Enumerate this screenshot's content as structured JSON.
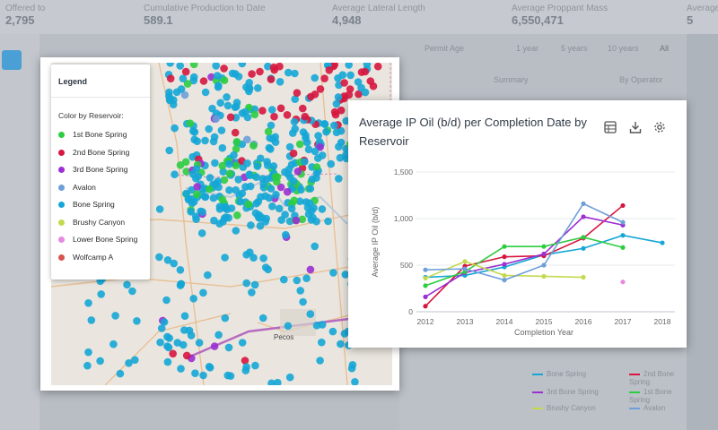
{
  "background": {
    "stats": [
      {
        "label": "Offered to",
        "value": "2,795"
      },
      {
        "label": "Cumulative Production to Date",
        "value": "589.1"
      },
      {
        "label": "Average Lateral Length",
        "value": "4,948"
      },
      {
        "label": "Average Proppant Mass",
        "value": "6,550,471"
      },
      {
        "label": "Average",
        "value": "5"
      }
    ],
    "tabs": [
      "Summary",
      "By Operator"
    ],
    "filters": [
      "Permit Age",
      "1 year",
      "5 years",
      "10 years",
      "All"
    ],
    "bottom_legend": [
      "Bone Spring",
      "2nd Bone Spring",
      "3rd Bone Spring",
      "1st Bone Spring",
      "Brushy Canyon",
      "Avalon"
    ]
  },
  "legend": {
    "title": "Legend",
    "subtitle": "Color by Reservoir:",
    "items": [
      {
        "label": "1st Bone Spring",
        "color": "#2ecc40"
      },
      {
        "label": "2nd Bone Spring",
        "color": "#d7163f"
      },
      {
        "label": "3rd Bone Spring",
        "color": "#9b2fd1"
      },
      {
        "label": "Avalon",
        "color": "#6e9fd9"
      },
      {
        "label": "Bone Spring",
        "color": "#15a6d6"
      },
      {
        "label": "Brushy Canyon",
        "color": "#c5d94e"
      },
      {
        "label": "Lower Bone Spring",
        "color": "#e68ae0"
      },
      {
        "label": "Wolfcamp A",
        "color": "#d9534f"
      }
    ]
  },
  "map": {
    "town_label": "Pecos"
  },
  "chart": {
    "title": "Average IP Oil (b/d) per Completion Date by Reservoir",
    "tool_icons": [
      "table-icon",
      "download-icon",
      "gear-icon"
    ]
  },
  "chart_data": {
    "type": "line",
    "title": "Average IP Oil (b/d) per Completion Date by Reservoir",
    "xlabel": "Completion Year",
    "ylabel": "Average IP Oil (b/d)",
    "categories": [
      "2012",
      "2013",
      "2014",
      "2015",
      "2016",
      "2017",
      "2018"
    ],
    "ylim": [
      0,
      1500
    ],
    "yticks": [
      "0",
      "500",
      "1,000",
      "1,500"
    ],
    "grid": true,
    "series": [
      {
        "name": "Bone Spring",
        "color": "#15a6d6",
        "values": [
          370,
          390,
          480,
          610,
          680,
          820,
          740
        ]
      },
      {
        "name": "2nd Bone Spring",
        "color": "#d7163f",
        "values": [
          60,
          490,
          590,
          600,
          790,
          1140,
          null
        ]
      },
      {
        "name": "3rd Bone Spring",
        "color": "#9b2fd1",
        "values": [
          160,
          420,
          510,
          620,
          1020,
          930,
          null
        ]
      },
      {
        "name": "1st Bone Spring",
        "color": "#2ecc40",
        "values": [
          280,
          430,
          700,
          700,
          800,
          690,
          null
        ]
      },
      {
        "name": "Brushy Canyon",
        "color": "#c5d94e",
        "values": [
          360,
          540,
          390,
          380,
          370,
          null,
          null
        ]
      },
      {
        "name": "Avalon",
        "color": "#6e9fd9",
        "values": [
          450,
          460,
          340,
          500,
          1160,
          960,
          null
        ]
      },
      {
        "name": "Lower Bone Spring",
        "color": "#e68ae0",
        "values": [
          null,
          null,
          null,
          null,
          null,
          320,
          null
        ]
      }
    ]
  }
}
